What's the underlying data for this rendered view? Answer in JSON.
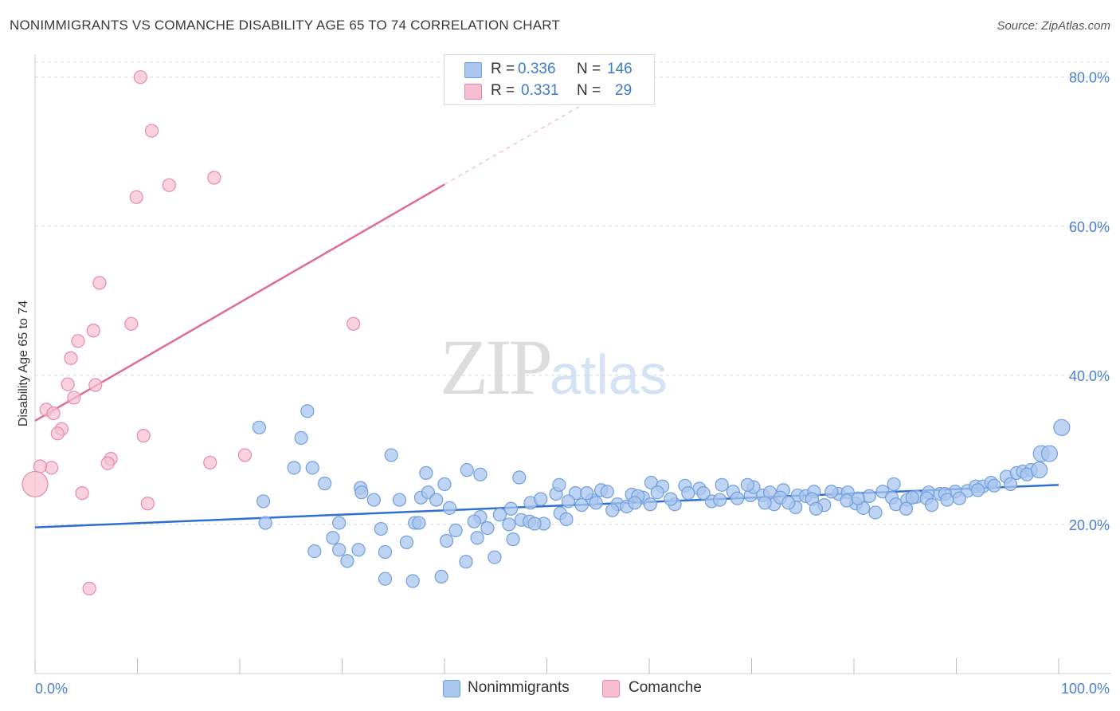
{
  "header": {
    "title": "NONIMMIGRANTS VS COMANCHE DISABILITY AGE 65 TO 74 CORRELATION CHART",
    "source": "Source: ZipAtlas.com"
  },
  "legend": {
    "rows": [
      {
        "r_label": "R =",
        "r_value": "0.336",
        "n_label": "N =",
        "n_value": "146"
      },
      {
        "r_label": "R =",
        "r_value": "0.331",
        "n_label": "N =",
        "n_value": "29"
      }
    ]
  },
  "bottom_legend": {
    "items": [
      {
        "label": "Nonimmigrants"
      },
      {
        "label": "Comanche"
      }
    ]
  },
  "watermark": {
    "zip": "ZIP",
    "atlas": "atlas"
  },
  "colors": {
    "blue_fill": "#a9c6ee",
    "blue_stroke": "#6f9fdd",
    "blue_line": "#2f6fcf",
    "pink_fill": "#f6bfd0",
    "pink_stroke": "#e68aa8",
    "pink_line": "#e06b93",
    "tick_text": "#4a7fd1",
    "grid": "#d8d8d8"
  },
  "chart_data": {
    "type": "scatter",
    "title": "NONIMMIGRANTS VS COMANCHE DISABILITY AGE 65 TO 74 CORRELATION CHART",
    "xlabel": "",
    "ylabel": "Disability Age 65 to 74",
    "xlim": [
      0,
      100
    ],
    "ylim": [
      0,
      82
    ],
    "x_tick_labels": [
      "0.0%",
      "100.0%"
    ],
    "y_ticks": [
      20,
      40,
      60,
      80
    ],
    "y_tick_labels": [
      "20.0%",
      "40.0%",
      "60.0%",
      "80.0%"
    ],
    "grid": true,
    "legend_position": "top-center",
    "series": [
      {
        "name": "Nonimmigrants",
        "color": "blue",
        "trend": {
          "x0": 0,
          "y0": 19.6,
          "x1": 100,
          "y1": 25.3
        },
        "points": [
          [
            21.9,
            33
          ],
          [
            26.6,
            35.2
          ],
          [
            26,
            31.6
          ],
          [
            25.3,
            27.6
          ],
          [
            27.1,
            27.6
          ],
          [
            22.3,
            23.1
          ],
          [
            22.5,
            20.2
          ],
          [
            28.3,
            25.5
          ],
          [
            34.8,
            29.3
          ],
          [
            38.2,
            26.9
          ],
          [
            42.2,
            27.3
          ],
          [
            47.3,
            26.3
          ],
          [
            43.5,
            26.7
          ],
          [
            40,
            25.4
          ],
          [
            31.8,
            24.9
          ],
          [
            31.9,
            24.3
          ],
          [
            37.7,
            23.6
          ],
          [
            38.4,
            24.3
          ],
          [
            39.2,
            23.3
          ],
          [
            33.1,
            23.3
          ],
          [
            35.6,
            23.3
          ],
          [
            27.3,
            16.4
          ],
          [
            29.1,
            18.2
          ],
          [
            29.7,
            16.6
          ],
          [
            31.6,
            16.6
          ],
          [
            30.5,
            15.1
          ],
          [
            29.7,
            20.2
          ],
          [
            34.2,
            16.3
          ],
          [
            36.3,
            17.6
          ],
          [
            33.8,
            19.4
          ],
          [
            34.2,
            12.7
          ],
          [
            36.9,
            12.4
          ],
          [
            39.7,
            13
          ],
          [
            40.2,
            17.8
          ],
          [
            41.1,
            19.2
          ],
          [
            42.1,
            15
          ],
          [
            43.2,
            18.2
          ],
          [
            44.2,
            19.5
          ],
          [
            44.9,
            15.6
          ],
          [
            46.3,
            20
          ],
          [
            46.7,
            18
          ],
          [
            47.5,
            20.6
          ],
          [
            48.3,
            20.4
          ],
          [
            49.7,
            20.1
          ],
          [
            48.8,
            20.1
          ],
          [
            45.4,
            21.3
          ],
          [
            43.5,
            21
          ],
          [
            42.9,
            20.4
          ],
          [
            40.5,
            22.2
          ],
          [
            37.1,
            20.2
          ],
          [
            37.5,
            20.2
          ],
          [
            46.5,
            22.1
          ],
          [
            48.4,
            22.9
          ],
          [
            49.4,
            23.4
          ],
          [
            50.9,
            24.1
          ],
          [
            51.2,
            25.3
          ],
          [
            52.8,
            24.2
          ],
          [
            54.4,
            23.3
          ],
          [
            55.3,
            24.6
          ],
          [
            56.9,
            22.7
          ],
          [
            58.3,
            24
          ],
          [
            59.4,
            23.6
          ],
          [
            60.2,
            25.6
          ],
          [
            61.3,
            25.1
          ],
          [
            62.5,
            22.7
          ],
          [
            63.5,
            25.2
          ],
          [
            64.9,
            24.8
          ],
          [
            66.1,
            23.1
          ],
          [
            67.1,
            25.3
          ],
          [
            68.2,
            24.4
          ],
          [
            69.9,
            23.9
          ],
          [
            70.2,
            25
          ],
          [
            71.1,
            23.9
          ],
          [
            72.2,
            22.7
          ],
          [
            73.1,
            24.6
          ],
          [
            74.5,
            23.9
          ],
          [
            75.3,
            23.8
          ],
          [
            76.1,
            24.4
          ],
          [
            77.1,
            22.6
          ],
          [
            78.5,
            24.1
          ],
          [
            79.4,
            24.3
          ],
          [
            80.2,
            22.8
          ],
          [
            81.5,
            23.8
          ],
          [
            82.8,
            24.4
          ],
          [
            83.7,
            23.6
          ],
          [
            84.1,
            22.7
          ],
          [
            85.2,
            23.3
          ],
          [
            86.1,
            23.7
          ],
          [
            87.3,
            24.3
          ],
          [
            88.4,
            24.1
          ],
          [
            89.9,
            24.4
          ],
          [
            91.1,
            24.5
          ],
          [
            91.9,
            25.1
          ],
          [
            92.6,
            25.1
          ],
          [
            93.4,
            25.6
          ],
          [
            94.9,
            26.4
          ],
          [
            95.9,
            26.9
          ],
          [
            96.5,
            27.1
          ],
          [
            97.3,
            27.3
          ],
          [
            98.3,
            29.5
          ],
          [
            99.1,
            29.5
          ],
          [
            100.3,
            33
          ],
          [
            51.3,
            21.5
          ],
          [
            51.9,
            20.7
          ],
          [
            53.4,
            22.6
          ],
          [
            54.8,
            22.9
          ],
          [
            56.4,
            21.9
          ],
          [
            57.8,
            22.4
          ],
          [
            58.9,
            23.8
          ],
          [
            60.8,
            24.3
          ],
          [
            62.1,
            23.4
          ],
          [
            63.8,
            24.2
          ],
          [
            65.3,
            24.2
          ],
          [
            66.9,
            23.3
          ],
          [
            68.6,
            23.5
          ],
          [
            69.6,
            25.3
          ],
          [
            71.8,
            24.3
          ],
          [
            72.8,
            23.6
          ],
          [
            74.3,
            22.3
          ],
          [
            75.9,
            23.4
          ],
          [
            77.8,
            24.4
          ],
          [
            79.3,
            23.2
          ],
          [
            80.9,
            22.2
          ],
          [
            82.1,
            21.6
          ],
          [
            83.9,
            25.4
          ],
          [
            85.7,
            23.6
          ],
          [
            87.1,
            23.5
          ],
          [
            88.9,
            24.1
          ],
          [
            90.3,
            23.5
          ],
          [
            92.1,
            24.6
          ],
          [
            93.7,
            25.2
          ],
          [
            95.3,
            25.4
          ],
          [
            96.9,
            26.7
          ],
          [
            98.1,
            27.3
          ],
          [
            85.1,
            22.1
          ],
          [
            87.6,
            22.6
          ],
          [
            89.1,
            23.3
          ],
          [
            80.4,
            23.5
          ],
          [
            76.3,
            22.1
          ],
          [
            73.6,
            22.9
          ],
          [
            71.3,
            22.9
          ],
          [
            60.1,
            22.7
          ],
          [
            58.6,
            22.9
          ],
          [
            55.9,
            24.4
          ],
          [
            53.9,
            24.2
          ],
          [
            52.1,
            23.1
          ]
        ]
      },
      {
        "name": "Comanche",
        "color": "pink",
        "trend": {
          "x0": 0,
          "y0": 33.9,
          "x1": 40,
          "y1": 65.6,
          "x_dash_end": 55,
          "y_dash_end": 77.5
        },
        "points": [
          [
            10.3,
            80
          ],
          [
            11.4,
            72.8
          ],
          [
            13.1,
            65.5
          ],
          [
            17.5,
            66.5
          ],
          [
            9.9,
            63.9
          ],
          [
            6.3,
            52.4
          ],
          [
            9.4,
            46.9
          ],
          [
            31.1,
            46.9
          ],
          [
            5.7,
            46
          ],
          [
            4.2,
            44.6
          ],
          [
            3.5,
            42.3
          ],
          [
            3.2,
            38.8
          ],
          [
            5.9,
            38.7
          ],
          [
            3.8,
            37
          ],
          [
            1.1,
            35.4
          ],
          [
            1.8,
            34.9
          ],
          [
            2.6,
            32.8
          ],
          [
            2.2,
            32.2
          ],
          [
            10.6,
            31.9
          ],
          [
            7.4,
            28.8
          ],
          [
            7.1,
            28.2
          ],
          [
            17.1,
            28.3
          ],
          [
            20.5,
            29.3
          ],
          [
            1.6,
            27.6
          ],
          [
            0.5,
            27.8
          ],
          [
            0,
            25.4
          ],
          [
            4.6,
            24.2
          ],
          [
            11,
            22.8
          ],
          [
            5.3,
            11.4
          ]
        ]
      }
    ]
  }
}
